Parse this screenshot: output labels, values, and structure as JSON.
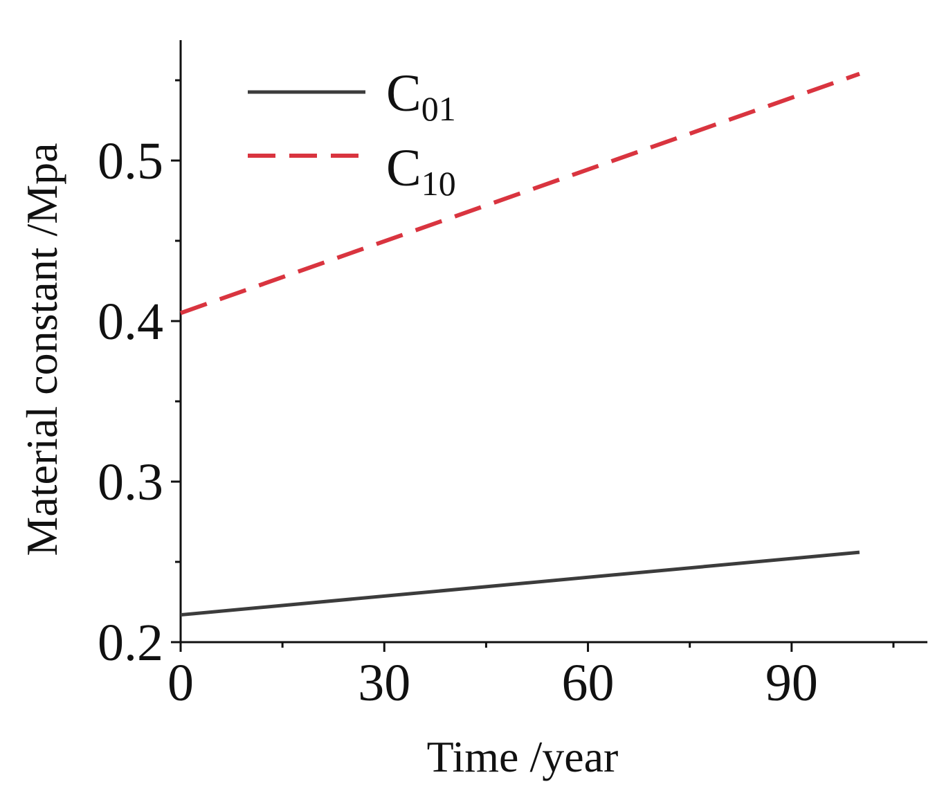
{
  "chart_data": {
    "type": "line",
    "title": "",
    "xlabel": "Time /year",
    "ylabel": "Material constant /Mpa",
    "xlim": [
      0,
      110
    ],
    "ylim": [
      0.2,
      0.575
    ],
    "xticks": [
      0,
      30,
      60,
      90
    ],
    "xtick_labels": [
      "0",
      "30",
      "60",
      "90"
    ],
    "yticks": [
      0.2,
      0.3,
      0.4,
      0.5
    ],
    "ytick_labels": [
      "0.2",
      "0.3",
      "0.4",
      "0.5"
    ],
    "grid": false,
    "legend_position": "top-left",
    "series": [
      {
        "name": "C01",
        "legend_base": "C",
        "legend_sub": "01",
        "style": "solid",
        "color": "#3c3c3c",
        "x": [
          0,
          100
        ],
        "y": [
          0.217,
          0.256
        ]
      },
      {
        "name": "C10",
        "legend_base": "C",
        "legend_sub": "10",
        "style": "dashed",
        "color": "#d9343f",
        "x": [
          0,
          100
        ],
        "y": [
          0.405,
          0.554
        ]
      }
    ]
  }
}
